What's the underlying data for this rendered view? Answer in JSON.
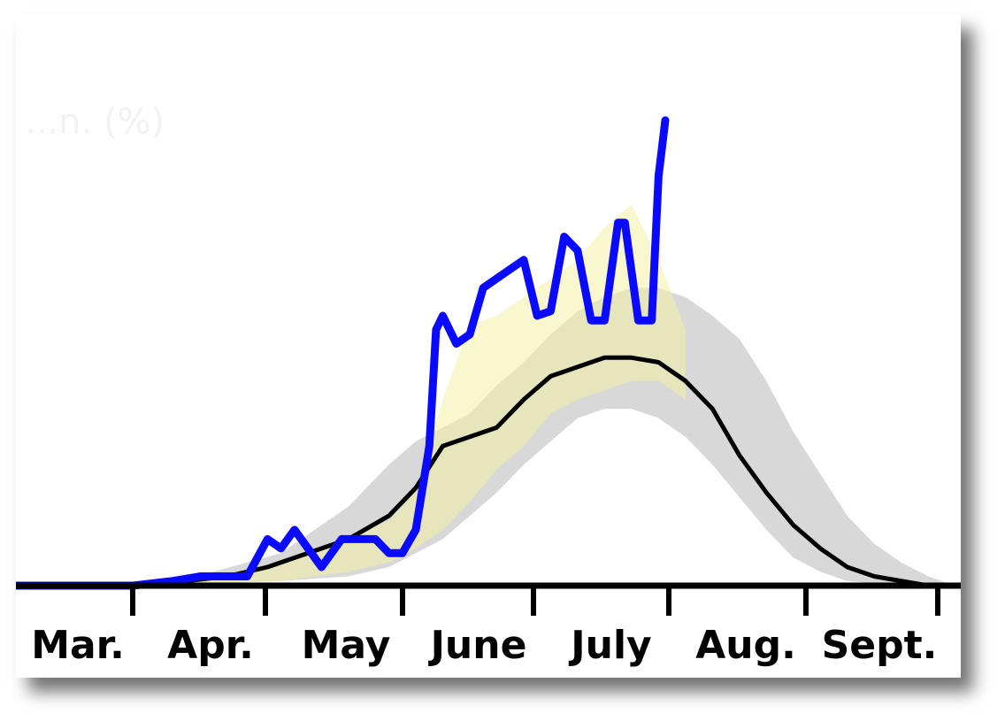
{
  "chart_data": {
    "type": "line",
    "title": "",
    "faded_text": "...n. (%)",
    "xlabel": "",
    "ylabel": "",
    "x_ticks": [
      "Mar.",
      "Apr.",
      "May",
      "June",
      "July",
      "Aug.",
      "Sept."
    ],
    "x_range": [
      0,
      7.0
    ],
    "ylim": [
      0,
      100
    ],
    "grid": false,
    "series": [
      {
        "color": "#0a0aff",
        "style": "current",
        "x": [
          0,
          0.9,
          1.2,
          1.4,
          1.6,
          1.75,
          1.9,
          2.0,
          2.1,
          2.2,
          2.3,
          2.45,
          2.6,
          2.7,
          2.8,
          2.9,
          3.0,
          3.1,
          3.15,
          3.2,
          3.3,
          3.4,
          3.5,
          3.6,
          3.7,
          3.8,
          3.9,
          4.0,
          4.1,
          4.2,
          4.3,
          4.4,
          4.5,
          4.55,
          4.65,
          4.75,
          4.8,
          4.85
        ],
        "y": [
          0,
          0,
          1,
          2,
          2,
          2,
          10,
          8,
          12,
          8,
          4,
          10,
          10,
          10,
          7,
          7,
          12,
          30,
          55,
          58,
          52,
          54,
          64,
          66,
          68,
          70,
          58,
          59,
          75,
          72,
          57,
          57,
          78,
          78,
          57,
          57,
          88,
          100
        ]
      },
      {
        "color": "#000000",
        "style": "median",
        "x": [
          0,
          1.0,
          1.3,
          1.6,
          1.9,
          2.2,
          2.5,
          2.8,
          3.0,
          3.2,
          3.4,
          3.6,
          3.8,
          4.0,
          4.2,
          4.4,
          4.6,
          4.8,
          5.0,
          5.2,
          5.4,
          5.6,
          5.8,
          6.0,
          6.2,
          6.4,
          6.6,
          6.8,
          7.0
        ],
        "y": [
          0,
          0,
          1,
          2,
          4,
          7,
          10,
          15,
          21,
          30,
          32,
          34,
          40,
          45,
          47,
          49,
          49,
          48,
          44,
          38,
          28,
          20,
          13,
          8,
          4,
          2,
          1,
          0,
          0
        ]
      }
    ],
    "bands": [
      {
        "color": "#c8c8c8",
        "x": [
          1.0,
          1.5,
          2.0,
          2.5,
          2.8,
          3.0,
          3.2,
          3.4,
          3.6,
          3.8,
          4.0,
          4.2,
          4.4,
          4.6,
          4.8,
          5.0,
          5.2,
          5.4,
          5.6,
          5.8,
          6.0,
          6.2,
          6.4,
          6.6,
          6.8,
          7.0
        ],
        "upper": [
          0.5,
          3,
          7,
          17,
          26,
          31,
          34,
          37,
          43,
          48,
          54,
          59,
          62,
          64,
          64,
          62,
          58,
          53,
          44,
          33,
          24,
          15,
          9,
          5,
          2,
          0
        ],
        "lower": [
          0,
          0.5,
          1,
          2,
          4,
          7,
          10,
          15,
          20,
          26,
          31,
          36,
          38,
          38,
          36,
          32,
          26,
          19,
          12,
          6,
          3,
          1,
          0.5,
          0,
          0,
          0
        ]
      },
      {
        "color": "#f3f0a6",
        "x": [
          1.0,
          1.5,
          2.0,
          2.5,
          2.8,
          3.0,
          3.2,
          3.4,
          3.6,
          3.8,
          4.0,
          4.2,
          4.4,
          4.6,
          4.8,
          5.0
        ],
        "upper": [
          0.5,
          2,
          5,
          10,
          14,
          20,
          40,
          56,
          58,
          62,
          66,
          70,
          77,
          82,
          70,
          55
        ],
        "lower": [
          0,
          0.5,
          1,
          3,
          5,
          8,
          12,
          18,
          25,
          30,
          37,
          40,
          42,
          44,
          44,
          40
        ]
      }
    ]
  }
}
